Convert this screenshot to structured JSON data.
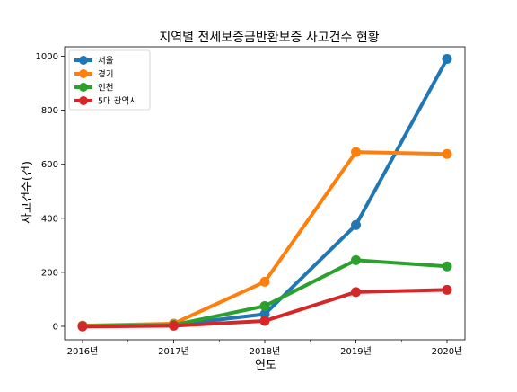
{
  "chart_data": {
    "type": "line",
    "title": "지역별 전세보증금반환보증 사고건수 현황",
    "xlabel": "연도",
    "ylabel": "사고건수(건)",
    "categories": [
      "2016년",
      "2017년",
      "2018년",
      "2019년",
      "2020년"
    ],
    "ylim": [
      -50,
      1035
    ],
    "yticks": [
      0,
      200,
      400,
      600,
      800,
      1000
    ],
    "grid": false,
    "legend_position": "top-left",
    "series": [
      {
        "name": "서울",
        "color": "#1f77b4",
        "values": [
          2,
          5,
          45,
          375,
          990
        ]
      },
      {
        "name": "경기",
        "color": "#ff7f0e",
        "values": [
          3,
          10,
          165,
          645,
          638
        ]
      },
      {
        "name": "인천",
        "color": "#2ca02c",
        "values": [
          1,
          5,
          75,
          245,
          222
        ]
      },
      {
        "name": "5대 광역시",
        "color": "#d62728",
        "values": [
          -1,
          2,
          20,
          127,
          135
        ]
      }
    ]
  }
}
